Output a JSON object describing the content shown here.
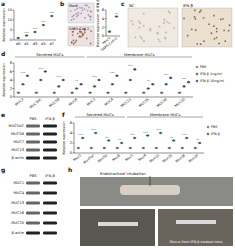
{
  "chart_data": [
    {
      "type": "dot",
      "y_label": "Relative expression",
      "categories": [
        "d0",
        "d1",
        "d3",
        "d5",
        "d7"
      ],
      "series": [
        {
          "color": "#3a9a4a",
          "values": [
            1,
            2.2,
            4,
            7.5,
            12
          ]
        }
      ],
      "ylim": [
        0,
        15
      ],
      "yticks": [
        0,
        5,
        10,
        15
      ],
      "marker": "circle",
      "significance": [
        null,
        "***",
        "***",
        "***",
        "***"
      ]
    },
    {
      "type": "dot",
      "y_label": "Relative expression of IFN-β",
      "categories": [
        "Mock",
        "SARS-CoV-2"
      ],
      "series": [
        {
          "color": "#3a9a4a",
          "values": [
            1,
            4.5
          ]
        }
      ],
      "ylim": [
        0,
        6
      ],
      "yticks": [
        0,
        2,
        4,
        6
      ],
      "marker": "circle",
      "significance": [
        null,
        "**"
      ]
    },
    {
      "type": "dot",
      "y_label": "Relative expression",
      "categories": [
        "MUC2",
        "MUC5AC",
        "MUC5B",
        "MUC6",
        "MUC1",
        "MUC4",
        "MUC13",
        "MUC15",
        "MUC16",
        "MUC20"
      ],
      "groups": [
        {
          "label": "Secreted MUCs",
          "categories": [
            "MUC2",
            "MUC5AC",
            "MUC5B",
            "MUC6"
          ]
        },
        {
          "label": "Membrane MUCs",
          "categories": [
            "MUC1",
            "MUC4",
            "MUC13",
            "MUC15",
            "MUC16",
            "MUC20"
          ]
        }
      ],
      "series": [
        {
          "name": "PBS",
          "color": "#8c8c8c",
          "values": [
            1,
            1,
            1,
            1,
            1,
            1,
            1,
            1,
            1,
            1
          ]
        },
        {
          "name": "IFN-β 1ng/ml",
          "color": "#3a9a4a",
          "values": [
            3,
            4,
            2.5,
            2,
            2.5,
            3,
            4,
            2,
            3,
            2.5
          ]
        },
        {
          "name": "IFN-β 10ng/ml",
          "color": "#6a5fb0",
          "values": [
            5,
            6,
            4,
            3,
            4,
            5,
            6.5,
            3,
            4.5,
            3.5
          ]
        }
      ],
      "ylim": [
        0,
        8
      ],
      "yticks": [
        0,
        2,
        4,
        6,
        8
      ],
      "marker": "circle",
      "legend": "right",
      "significance": [
        "***",
        "***",
        "***",
        "**",
        "***",
        "***",
        "***",
        "**",
        "***",
        "***"
      ]
    },
    {
      "type": "dot",
      "y_label": "Relative expression",
      "categories": [
        "Muc2",
        "Muc5ac",
        "Muc5b",
        "Muc6",
        "Muc1",
        "Muc4",
        "Muc13",
        "Muc15",
        "Muc16",
        "Muc20"
      ],
      "groups": [
        {
          "label": "Secreted MUCs",
          "categories": [
            "Muc2",
            "Muc5ac",
            "Muc5b",
            "Muc6"
          ]
        },
        {
          "label": "Membrane MUCs",
          "categories": [
            "Muc1",
            "Muc4",
            "Muc13",
            "Muc15",
            "Muc16",
            "Muc20"
          ]
        }
      ],
      "series": [
        {
          "name": "PBS",
          "color": "#8c8c8c",
          "values": [
            1,
            1,
            1,
            1,
            1,
            1,
            1,
            1,
            1,
            1
          ]
        },
        {
          "name": "IFN-β",
          "color": "#3a9a4a",
          "values": [
            3,
            4,
            2.5,
            2,
            3,
            3.5,
            4,
            2.5,
            3,
            2
          ]
        }
      ],
      "ylim": [
        0,
        6
      ],
      "yticks": [
        0,
        2,
        4,
        6
      ],
      "marker": "circle",
      "legend": "right",
      "significance": [
        "***",
        "***",
        "**",
        "**",
        "***",
        "***",
        "***",
        "**",
        "***",
        "**"
      ]
    }
  ],
  "figure": {
    "panel_labels": [
      "a",
      "b",
      "c",
      "d",
      "e",
      "f",
      "g",
      "h"
    ],
    "b_images": [
      "Mock",
      "SARS-CoV-2"
    ],
    "c_images": [
      "NC",
      "IFN-β"
    ],
    "e_blot": {
      "columns": [
        "PBS",
        "IFN-β"
      ],
      "rows": [
        "MUC5AC",
        "MUC5B",
        "MUC7",
        "MUC13",
        "β-actin"
      ]
    },
    "g_blot": {
      "columns": [
        "PBS",
        "IFN-β"
      ],
      "rows": [
        "MUC1",
        "MUC4",
        "MUC13",
        "MUC16",
        "MUC20",
        "β-actin"
      ]
    },
    "h_captions": [
      "Endotracheal intubation",
      "Mucus from IFN-β-treated mice"
    ]
  }
}
